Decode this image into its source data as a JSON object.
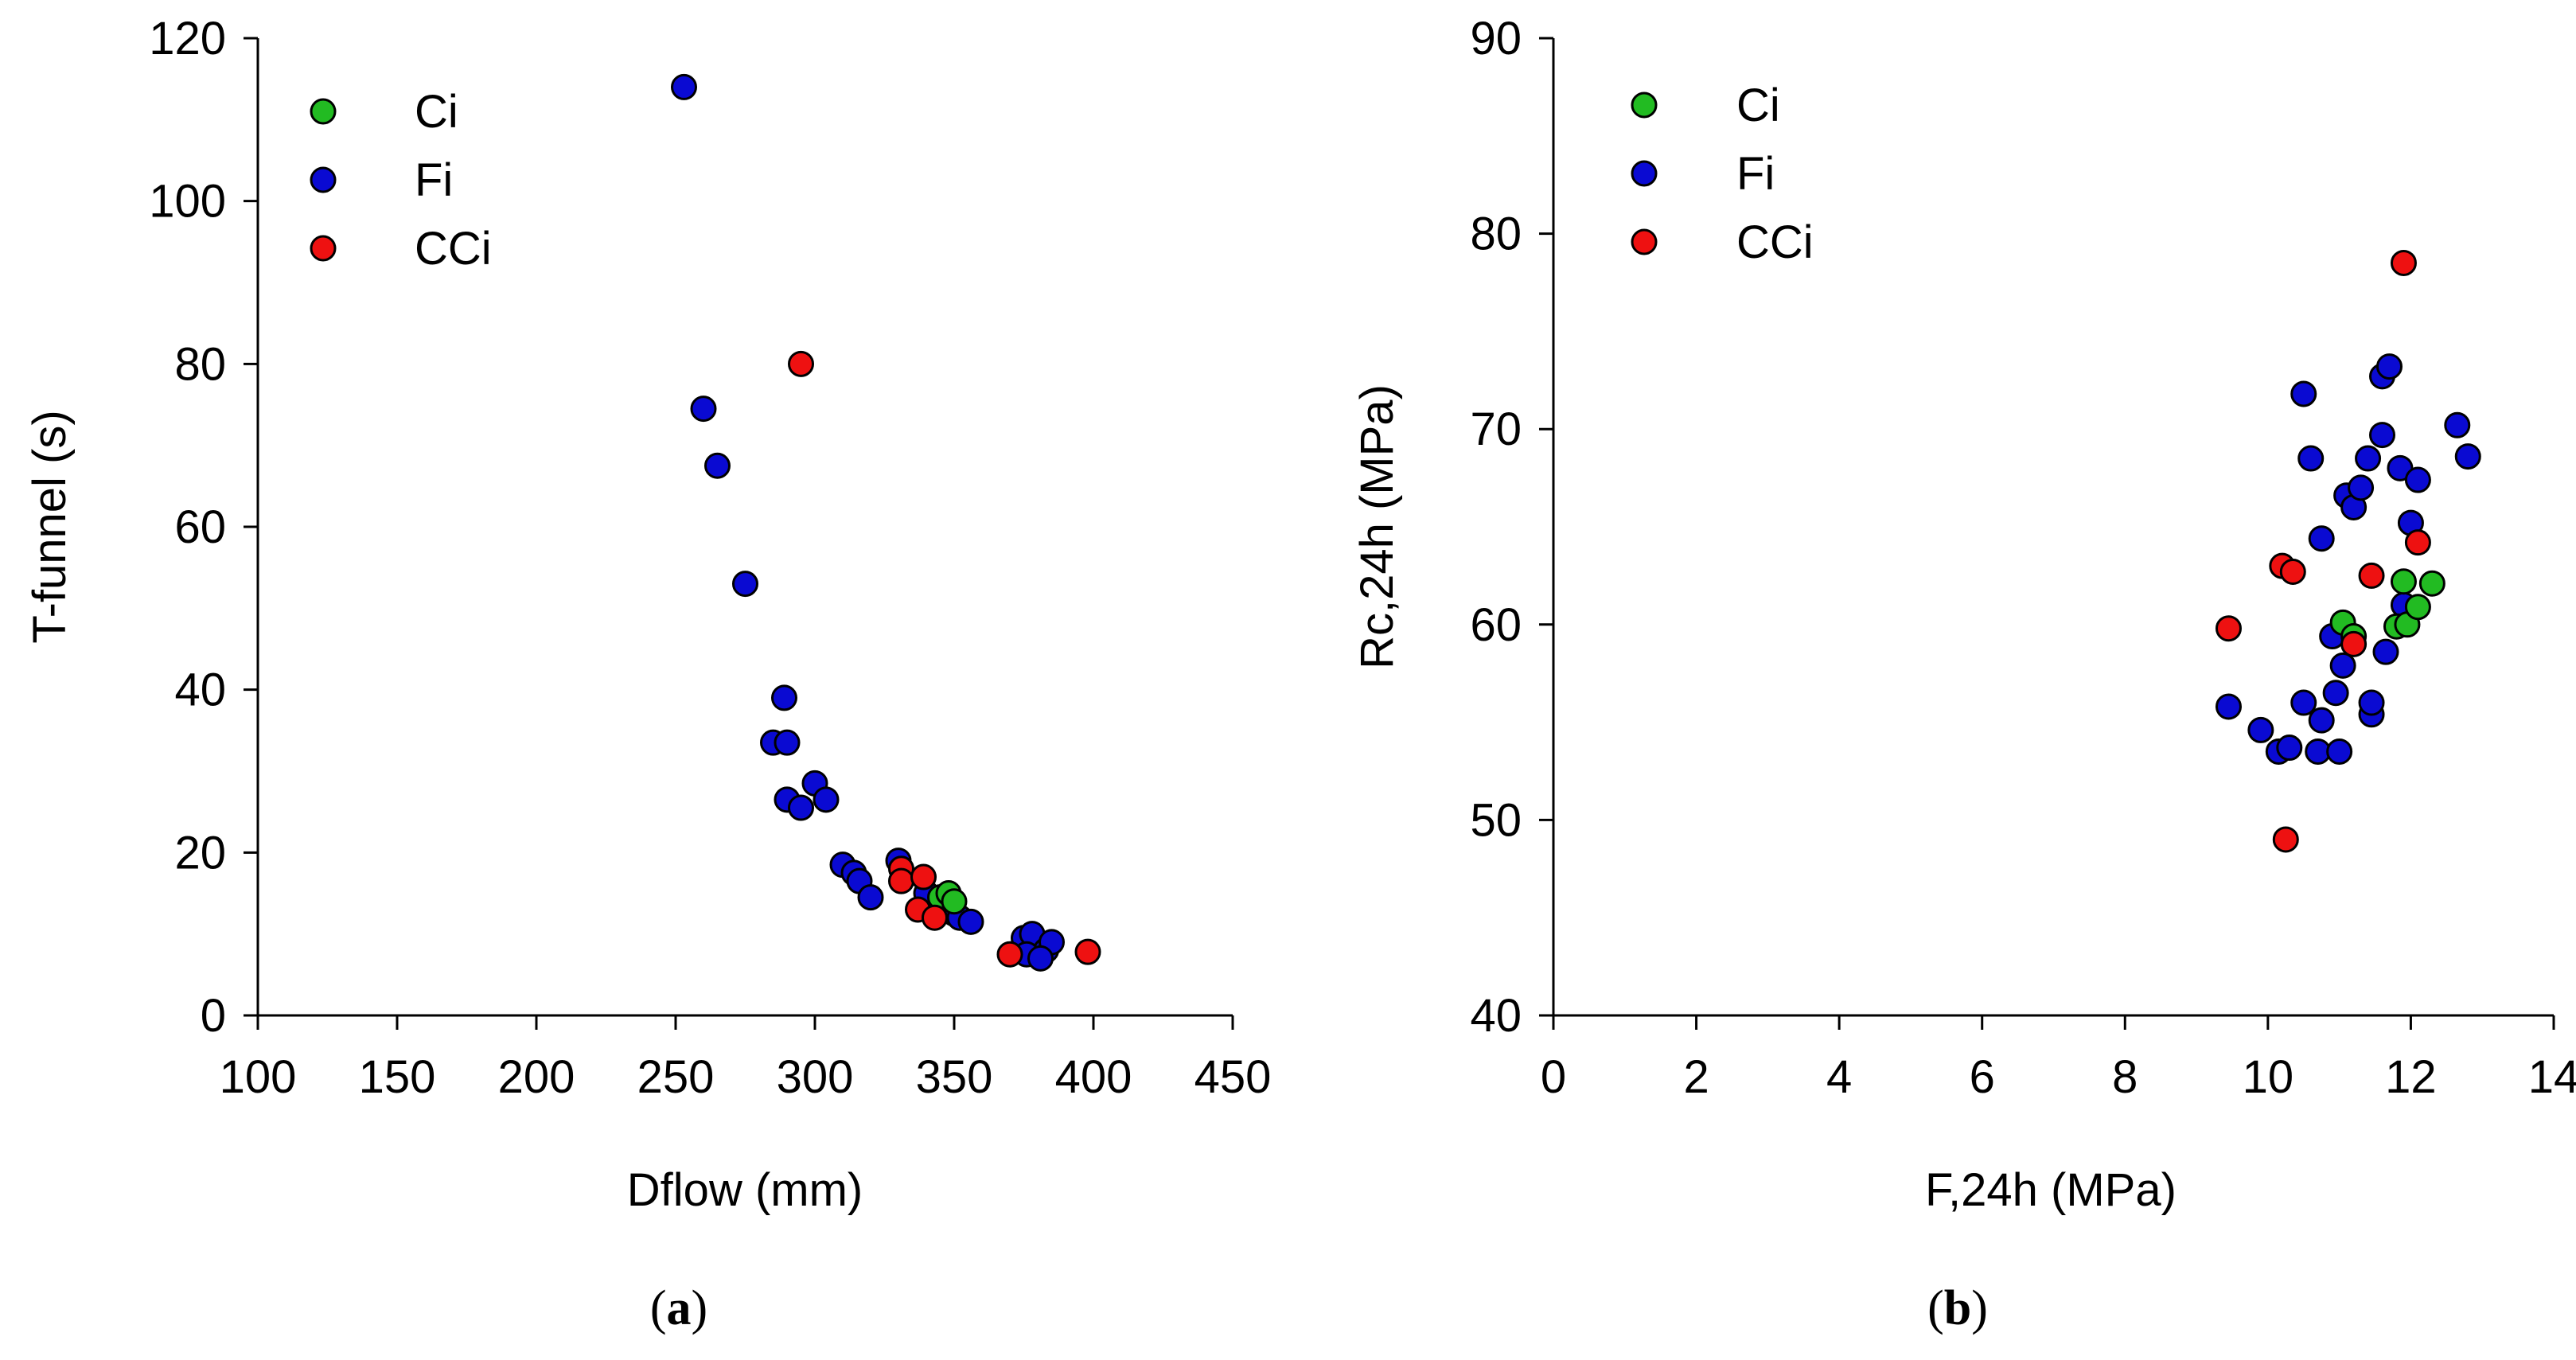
{
  "colors": {
    "Ci": "#22bb22",
    "Fi": "#0a0ad2",
    "CCi": "#ee1111"
  },
  "chart_data": [
    {
      "type": "scatter",
      "panel_label": "a",
      "xlabel": "Dflow (mm)",
      "ylabel": "T-funnel (s)",
      "xlim": [
        100,
        450
      ],
      "ylim": [
        0,
        120
      ],
      "xticks": [
        "100",
        "150",
        "200",
        "250",
        "300",
        "350",
        "400",
        "450"
      ],
      "yticks": [
        "0",
        "20",
        "40",
        "60",
        "80",
        "100",
        "120"
      ],
      "legend": [
        "Ci",
        "Fi",
        "CCi"
      ],
      "legend_position": "top-left",
      "series": [
        {
          "name": "Fi",
          "points": [
            [
              253,
              114
            ],
            [
              260,
              74.5
            ],
            [
              265,
              67.5
            ],
            [
              275,
              53
            ],
            [
              289,
              39
            ],
            [
              285,
              33.5
            ],
            [
              290,
              33.5
            ],
            [
              290,
              26.5
            ],
            [
              295,
              25.5
            ],
            [
              300,
              28.5
            ],
            [
              304,
              26.5
            ],
            [
              310,
              18.5
            ],
            [
              314,
              17.5
            ],
            [
              316,
              16.5
            ],
            [
              320,
              14.5
            ],
            [
              330,
              19
            ],
            [
              340,
              15
            ],
            [
              350,
              12.5
            ],
            [
              352,
              12
            ],
            [
              356,
              11.5
            ],
            [
              375,
              9.5
            ],
            [
              378,
              10
            ],
            [
              383,
              8
            ],
            [
              385,
              9
            ],
            [
              376,
              7.5
            ],
            [
              381,
              7
            ]
          ]
        },
        {
          "name": "Ci",
          "points": [
            [
              345,
              14.5
            ],
            [
              348,
              15
            ],
            [
              350,
              14
            ]
          ]
        },
        {
          "name": "CCi",
          "points": [
            [
              295,
              80
            ],
            [
              331,
              18
            ],
            [
              331,
              16.5
            ],
            [
              339,
              17
            ],
            [
              337,
              13
            ],
            [
              343,
              12
            ],
            [
              370,
              7.5
            ],
            [
              398,
              7.8
            ]
          ]
        }
      ]
    },
    {
      "type": "scatter",
      "panel_label": "b",
      "xlabel": "F,24h (MPa)",
      "ylabel": "Rc,24h (MPa)",
      "xlim": [
        0,
        14
      ],
      "ylim": [
        40,
        90
      ],
      "xticks": [
        "0",
        "2",
        "4",
        "6",
        "8",
        "10",
        "12",
        "14"
      ],
      "yticks": [
        "40",
        "50",
        "60",
        "70",
        "80",
        "90"
      ],
      "legend": [
        "Ci",
        "Fi",
        "CCi"
      ],
      "legend_position": "top-left",
      "series": [
        {
          "name": "Fi",
          "points": [
            [
              9.45,
              55.8
            ],
            [
              9.9,
              54.6
            ],
            [
              10.15,
              53.5
            ],
            [
              10.3,
              53.7
            ],
            [
              10.5,
              71.8
            ],
            [
              10.6,
              68.5
            ],
            [
              10.5,
              56
            ],
            [
              10.7,
              53.5
            ],
            [
              10.75,
              55.1
            ],
            [
              10.75,
              64.4
            ],
            [
              10.9,
              59.4
            ],
            [
              10.95,
              56.5
            ],
            [
              11.0,
              53.5
            ],
            [
              11.05,
              57.9
            ],
            [
              11.1,
              66.6
            ],
            [
              11.2,
              66
            ],
            [
              11.3,
              67
            ],
            [
              11.4,
              68.5
            ],
            [
              11.45,
              55.4
            ],
            [
              11.45,
              56
            ],
            [
              11.6,
              72.7
            ],
            [
              11.6,
              69.7
            ],
            [
              11.65,
              58.6
            ],
            [
              11.7,
              73.2
            ],
            [
              11.85,
              68
            ],
            [
              11.9,
              61
            ],
            [
              12.0,
              65.2
            ],
            [
              12.1,
              67.4
            ],
            [
              12.65,
              70.2
            ],
            [
              12.8,
              68.6
            ]
          ]
        },
        {
          "name": "Ci",
          "points": [
            [
              11.05,
              60.1
            ],
            [
              11.2,
              59.4
            ],
            [
              11.8,
              59.9
            ],
            [
              11.95,
              60
            ],
            [
              11.9,
              62.2
            ],
            [
              12.1,
              60.9
            ],
            [
              12.3,
              62.1
            ]
          ]
        },
        {
          "name": "CCi",
          "points": [
            [
              9.45,
              59.8
            ],
            [
              10.2,
              63
            ],
            [
              10.35,
              62.7
            ],
            [
              10.25,
              49
            ],
            [
              11.2,
              59
            ],
            [
              11.45,
              62.5
            ],
            [
              11.9,
              78.5
            ],
            [
              12.1,
              64.2
            ]
          ]
        }
      ]
    }
  ]
}
